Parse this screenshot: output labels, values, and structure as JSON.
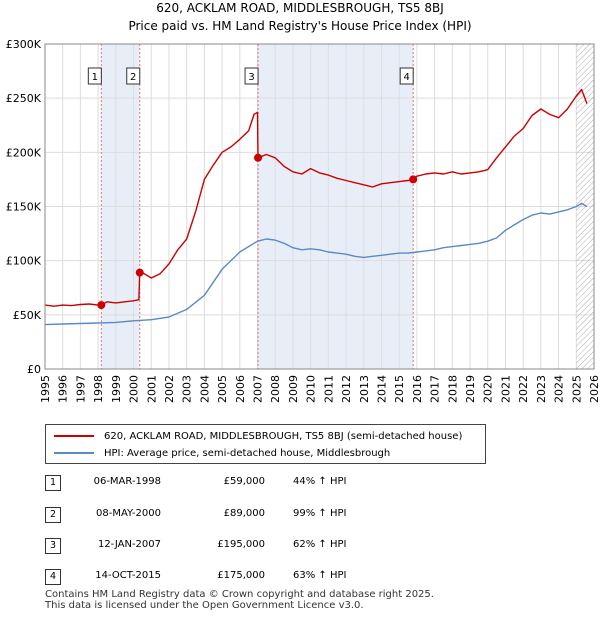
{
  "title": "620, ACKLAM ROAD, MIDDLESBROUGH, TS5 8BJ",
  "subtitle": "Price paid vs. HM Land Registry's House Price Index (HPI)",
  "colors": {
    "price": "#cc0000",
    "hpi": "#5b8ac2",
    "shade": "#e8eef8",
    "sale_line": "#e57373"
  },
  "legend": {
    "price_label": "620, ACKLAM ROAD, MIDDLESBROUGH, TS5 8BJ (semi-detached house)",
    "hpi_label": "HPI: Average price, semi-detached house, Middlesbrough"
  },
  "sales": [
    {
      "num": "1",
      "date": "06-MAR-1998",
      "price": "£59,000",
      "hpi": "44% ↑ HPI"
    },
    {
      "num": "2",
      "date": "08-MAY-2000",
      "price": "£89,000",
      "hpi": "99% ↑ HPI"
    },
    {
      "num": "3",
      "date": "12-JAN-2007",
      "price": "£195,000",
      "hpi": "62% ↑ HPI"
    },
    {
      "num": "4",
      "date": "14-OCT-2015",
      "price": "£175,000",
      "hpi": "63% ↑ HPI"
    }
  ],
  "footer": {
    "line1": "Contains HM Land Registry data © Crown copyright and database right 2025.",
    "line2": "This data is licensed under the Open Government Licence v3.0."
  },
  "chart_data": {
    "type": "line",
    "title": "620, ACKLAM ROAD, MIDDLESBROUGH, TS5 8BJ",
    "subtitle": "Price paid vs. HM Land Registry's House Price Index (HPI)",
    "xlim": [
      1995,
      2026
    ],
    "ylim": [
      0,
      300000
    ],
    "grid": true,
    "x_ticks": [
      1995,
      1996,
      1997,
      1998,
      1999,
      2000,
      2001,
      2002,
      2003,
      2004,
      2005,
      2006,
      2007,
      2008,
      2009,
      2010,
      2011,
      2012,
      2013,
      2014,
      2015,
      2016,
      2017,
      2018,
      2019,
      2020,
      2021,
      2022,
      2023,
      2024,
      2025,
      2026
    ],
    "y_ticks": [
      {
        "value": 0,
        "label": "£0"
      },
      {
        "value": 50000,
        "label": "£50K"
      },
      {
        "value": 100000,
        "label": "£100K"
      },
      {
        "value": 150000,
        "label": "£150K"
      },
      {
        "value": 200000,
        "label": "£200K"
      },
      {
        "value": 250000,
        "label": "£250K"
      },
      {
        "value": 300000,
        "label": "£300K"
      }
    ],
    "shaded_regions": [
      [
        1998.18,
        2000.35
      ],
      [
        2007.03,
        2015.79
      ]
    ],
    "hatched_from": 2025.0,
    "sale_points": [
      {
        "label": "1",
        "x": 1998.18,
        "y": 59000
      },
      {
        "label": "2",
        "x": 2000.35,
        "y": 89000
      },
      {
        "label": "3",
        "x": 2007.03,
        "y": 195000
      },
      {
        "label": "4",
        "x": 2015.79,
        "y": 175000
      }
    ],
    "series": [
      {
        "name": "620, ACKLAM ROAD, MIDDLESBROUGH, TS5 8BJ (semi-detached house)",
        "color": "#cc0000",
        "x": [
          1995.0,
          1995.5,
          1996.0,
          1996.5,
          1997.0,
          1997.5,
          1998.0,
          1998.18,
          1998.5,
          1999.0,
          1999.5,
          2000.0,
          2000.3,
          2000.35,
          2000.6,
          2001.0,
          2001.5,
          2002.0,
          2002.5,
          2003.0,
          2003.5,
          2004.0,
          2004.5,
          2005.0,
          2005.5,
          2006.0,
          2006.5,
          2006.8,
          2007.0,
          2007.03,
          2007.5,
          2008.0,
          2008.5,
          2009.0,
          2009.5,
          2010.0,
          2010.5,
          2011.0,
          2011.5,
          2012.0,
          2012.5,
          2013.0,
          2013.5,
          2014.0,
          2014.5,
          2015.0,
          2015.5,
          2015.79,
          2016.0,
          2016.5,
          2017.0,
          2017.5,
          2018.0,
          2018.5,
          2019.0,
          2019.5,
          2020.0,
          2020.5,
          2021.0,
          2021.5,
          2022.0,
          2022.5,
          2023.0,
          2023.5,
          2024.0,
          2024.5,
          2025.0,
          2025.3,
          2025.6
        ],
        "y": [
          59000,
          58000,
          59000,
          58500,
          59500,
          60000,
          59000,
          59000,
          62000,
          61000,
          62000,
          63000,
          64000,
          89000,
          88000,
          84000,
          88000,
          97000,
          110000,
          120000,
          145000,
          175000,
          188000,
          200000,
          205000,
          212000,
          220000,
          235000,
          237000,
          195000,
          198000,
          195000,
          187000,
          182000,
          180000,
          185000,
          181000,
          179000,
          176000,
          174000,
          172000,
          170000,
          168000,
          171000,
          172000,
          173000,
          174000,
          175000,
          178000,
          180000,
          181000,
          180000,
          182000,
          180000,
          181000,
          182000,
          184000,
          195000,
          205000,
          215000,
          222000,
          234000,
          240000,
          235000,
          232000,
          240000,
          252000,
          258000,
          245000
        ]
      },
      {
        "name": "HPI: Average price, semi-detached house, Middlesbrough",
        "color": "#5b8ac2",
        "x": [
          1995.0,
          1996.0,
          1997.0,
          1998.0,
          1999.0,
          2000.0,
          2001.0,
          2002.0,
          2003.0,
          2004.0,
          2005.0,
          2006.0,
          2007.0,
          2007.5,
          2008.0,
          2008.5,
          2009.0,
          2009.5,
          2010.0,
          2010.5,
          2011.0,
          2011.5,
          2012.0,
          2012.5,
          2013.0,
          2013.5,
          2014.0,
          2014.5,
          2015.0,
          2015.5,
          2016.0,
          2016.5,
          2017.0,
          2017.5,
          2018.0,
          2018.5,
          2019.0,
          2019.5,
          2020.0,
          2020.5,
          2021.0,
          2021.5,
          2022.0,
          2022.5,
          2023.0,
          2023.5,
          2024.0,
          2024.5,
          2025.0,
          2025.3,
          2025.6
        ],
        "y": [
          41000,
          41500,
          42000,
          42500,
          43000,
          44500,
          45500,
          48000,
          55000,
          68000,
          92000,
          108000,
          118000,
          120000,
          119000,
          116000,
          112000,
          110000,
          111000,
          110000,
          108000,
          107000,
          106000,
          104000,
          103000,
          104000,
          105000,
          106000,
          107000,
          107000,
          108000,
          109000,
          110000,
          112000,
          113000,
          114000,
          115000,
          116000,
          118000,
          121000,
          128000,
          133000,
          138000,
          142000,
          144000,
          143000,
          145000,
          147000,
          150000,
          153000,
          150000
        ]
      }
    ]
  }
}
